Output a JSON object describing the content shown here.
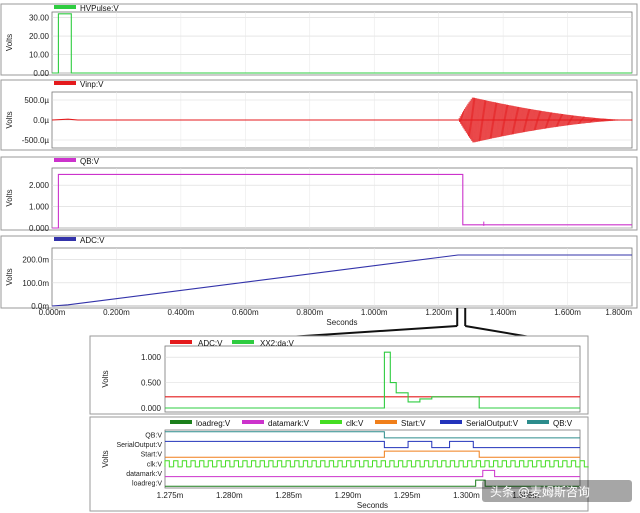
{
  "chart_data": [
    {
      "type": "line",
      "legend": [
        "HVPulse:V"
      ],
      "ylabel": "Volts",
      "yticks": [
        "30.00",
        "20.00",
        "10.00",
        "0.00"
      ],
      "ylim": [
        0,
        33
      ],
      "xlim_ms": [
        0,
        1.8
      ],
      "series": [
        {
          "name": "HVPulse:V",
          "color": "#2ecc40",
          "points": [
            [
              0,
              0
            ],
            [
              0.02,
              0
            ],
            [
              0.02,
              32
            ],
            [
              0.06,
              32
            ],
            [
              0.06,
              0
            ],
            [
              1.8,
              0
            ]
          ]
        }
      ]
    },
    {
      "type": "line",
      "legend": [
        "Vinp:V"
      ],
      "ylabel": "Volts",
      "yticks": [
        "500.0µ",
        "0.0µ",
        "-500.0µ"
      ],
      "ylim": [
        -700,
        700
      ],
      "xlim_ms": [
        0,
        1.8
      ],
      "series": [
        {
          "name": "Vinp:V",
          "color": "#e41a1c",
          "points": [
            [
              0,
              0
            ],
            [
              0.05,
              20
            ],
            [
              0.08,
              0
            ],
            [
              1.8,
              0
            ]
          ],
          "burst": {
            "start_ms": 1.26,
            "end_ms": 1.8,
            "amplitude": 650
          }
        }
      ]
    },
    {
      "type": "line",
      "legend": [
        "QB:V"
      ],
      "ylabel": "Volts",
      "yticks": [
        "2.000",
        "1.000",
        "0.000"
      ],
      "ylim": [
        0,
        2.8
      ],
      "xlim_ms": [
        0,
        1.8
      ],
      "series": [
        {
          "name": "QB:V",
          "color": "#cc33cc",
          "points": [
            [
              0,
              0
            ],
            [
              0.02,
              0
            ],
            [
              0.02,
              2.5
            ],
            [
              1.275,
              2.5
            ],
            [
              1.275,
              0.15
            ],
            [
              1.3,
              0.15
            ],
            [
              1.8,
              0.15
            ]
          ]
        }
      ]
    },
    {
      "type": "line",
      "legend": [
        "ADC:V"
      ],
      "ylabel": "Volts",
      "yticks": [
        "200.0m",
        "100.0m",
        "0.0m"
      ],
      "ylim": [
        0,
        250
      ],
      "xlim_ms": [
        0,
        1.8
      ],
      "xticks": [
        "0.000m",
        "0.200m",
        "0.400m",
        "0.600m",
        "0.800m",
        "1.000m",
        "1.200m",
        "1.400m",
        "1.600m",
        "1.800m"
      ],
      "xlabel": "Seconds",
      "series": [
        {
          "name": "ADC:V",
          "color": "#3333aa",
          "points": [
            [
              0,
              0
            ],
            [
              0.05,
              5
            ],
            [
              1.26,
              220
            ],
            [
              1.8,
              220
            ]
          ]
        }
      ]
    },
    {
      "type": "line",
      "legend": [
        "ADC:V",
        "XX2:da:V"
      ],
      "ylabel": "Volts",
      "yticks": [
        "1.000",
        "0.500",
        "0.000"
      ],
      "ylim": [
        0,
        1.3
      ],
      "xlim_ms": [
        1.275,
        1.31
      ],
      "series": [
        {
          "name": "ADC:V",
          "color": "#e41a1c",
          "points": [
            [
              1.275,
              0.22
            ],
            [
              1.31,
              0.22
            ]
          ]
        },
        {
          "name": "XX2:da:V",
          "color": "#2ecc40",
          "points": [
            [
              1.275,
              0
            ],
            [
              1.2935,
              0
            ],
            [
              1.2935,
              1.1
            ],
            [
              1.294,
              1.1
            ],
            [
              1.294,
              0.5
            ],
            [
              1.2945,
              0.5
            ],
            [
              1.2945,
              0.3
            ],
            [
              1.2955,
              0.3
            ],
            [
              1.2955,
              0.12
            ],
            [
              1.2965,
              0.12
            ],
            [
              1.2965,
              0.18
            ],
            [
              1.2975,
              0.18
            ],
            [
              1.2975,
              0.22
            ],
            [
              1.3015,
              0.22
            ],
            [
              1.3015,
              0
            ],
            [
              1.31,
              0
            ]
          ]
        }
      ]
    },
    {
      "type": "line",
      "legend": [
        "loadreg:V",
        "datamark:V",
        "clk:V",
        "Start:V",
        "SerialOutput:V",
        "QB:V"
      ],
      "ylabel": "Volts",
      "signals": [
        "QB:V",
        "SerialOutput:V",
        "Start:V",
        "clk:V",
        "datamark:V",
        "loadreg:V"
      ],
      "xticks": [
        "1.275m",
        "1.280m",
        "1.285m",
        "1.290m",
        "1.295m",
        "1.300m",
        "1.305m"
      ],
      "xlabel": "Seconds",
      "xlim_ms": [
        1.275,
        1.31
      ],
      "series": [
        {
          "name": "loadreg:V",
          "color": "#1b7f1b"
        },
        {
          "name": "datamark:V",
          "color": "#cc33cc"
        },
        {
          "name": "clk:V",
          "color": "#44dd22"
        },
        {
          "name": "Start:V",
          "color": "#f07f1a"
        },
        {
          "name": "SerialOutput:V",
          "color": "#2233bb"
        },
        {
          "name": "QB:V",
          "color": "#2c8c8c"
        }
      ]
    }
  ],
  "watermark": "头条 @麦姆斯咨询"
}
